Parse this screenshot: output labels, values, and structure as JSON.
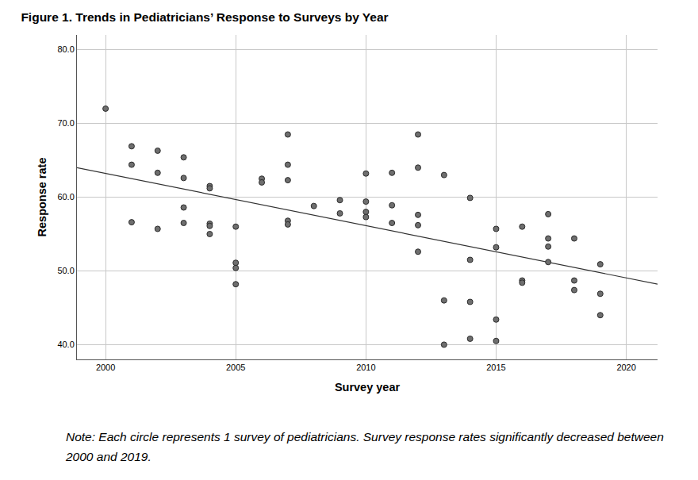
{
  "chart_data": {
    "type": "scatter",
    "title": "Figure 1. Trends in Pediatricians’ Response to Surveys by Year",
    "x_label": "Survey year",
    "y_label": "Response rate",
    "note": "Note: Each circle represents 1 survey of pediatricians. Survey response rates significantly decreased between 2000  and 2019.",
    "x": [
      2000,
      2001,
      2001,
      2001,
      2002,
      2002,
      2002,
      2003,
      2003,
      2003,
      2003,
      2004,
      2004,
      2004,
      2004,
      2004,
      2005,
      2005,
      2005,
      2005,
      2006,
      2006,
      2007,
      2007,
      2007,
      2007,
      2007,
      2008,
      2009,
      2009,
      2010,
      2010,
      2010,
      2010,
      2011,
      2011,
      2011,
      2012,
      2012,
      2012,
      2012,
      2012,
      2013,
      2013,
      2013,
      2014,
      2014,
      2014,
      2014,
      2015,
      2015,
      2015,
      2015,
      2016,
      2016,
      2016,
      2017,
      2017,
      2017,
      2017,
      2018,
      2018,
      2018,
      2019,
      2019,
      2019
    ],
    "values": [
      72.0,
      66.9,
      64.4,
      56.6,
      66.3,
      63.3,
      55.7,
      65.4,
      62.6,
      58.6,
      56.5,
      61.5,
      61.2,
      56.4,
      56.1,
      55.0,
      56.0,
      51.1,
      50.4,
      48.2,
      62.5,
      62.0,
      68.5,
      64.4,
      62.3,
      56.8,
      56.3,
      58.8,
      59.6,
      57.8,
      63.2,
      59.4,
      58.0,
      57.3,
      63.3,
      58.9,
      56.5,
      68.5,
      64.0,
      57.6,
      56.2,
      52.6,
      63.0,
      46.0,
      40.0,
      59.9,
      51.5,
      45.8,
      40.8,
      55.7,
      53.2,
      43.4,
      40.5,
      56.0,
      48.7,
      48.4,
      57.7,
      54.4,
      53.3,
      51.2,
      54.4,
      48.7,
      47.4,
      50.9,
      46.9,
      44.0
    ],
    "color": "#6e6e6e",
    "marker": "circle",
    "trend_line": {
      "x": [
        1998.9,
        2021.2
      ],
      "values": [
        64.0,
        48.2
      ],
      "color": "#333333",
      "line_style": "solid"
    },
    "xlim": [
      1998.9,
      2021.2
    ],
    "xticks": [
      2000,
      2005,
      2010,
      2015,
      2020
    ],
    "ylim": [
      38.0,
      82.0
    ],
    "yticks": [
      {
        "value": 40,
        "label": "40.0"
      },
      {
        "value": 50,
        "label": "50.0"
      },
      {
        "value": 60,
        "label": "60.0"
      },
      {
        "value": 70,
        "label": "70.0"
      },
      {
        "value": 80,
        "label": "80.0"
      }
    ],
    "grid": true
  }
}
